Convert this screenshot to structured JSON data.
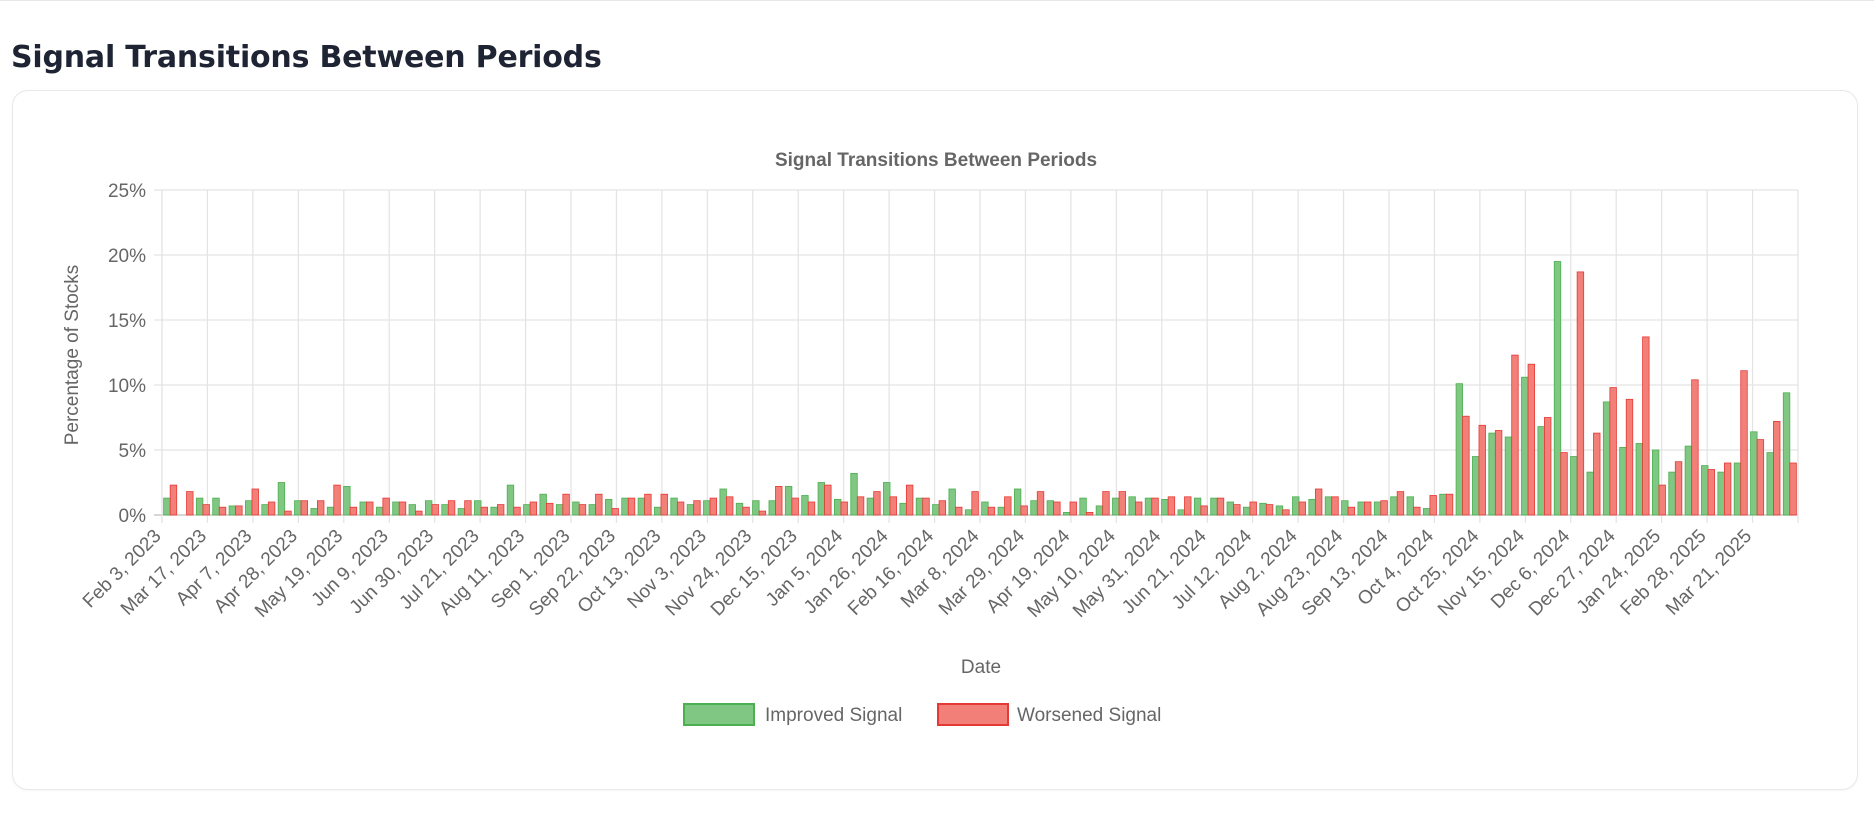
{
  "page": {
    "title": "Signal Transitions Between Periods"
  },
  "chart_data": {
    "type": "bar",
    "title": "Signal Transitions Between Periods",
    "xlabel": "Date",
    "ylabel": "Percentage of Stocks",
    "ylim": [
      0,
      25
    ],
    "y_ticks": [
      "0%",
      "5%",
      "10%",
      "15%",
      "20%",
      "25%"
    ],
    "grid": true,
    "legend_position": "bottom",
    "x_tick_labels": [
      "Feb 3, 2023",
      "Mar 17, 2023",
      "Apr 7, 2023",
      "Apr 28, 2023",
      "May 19, 2023",
      "Jun 9, 2023",
      "Jun 30, 2023",
      "Jul 21, 2023",
      "Aug 11, 2023",
      "Sep 1, 2023",
      "Sep 22, 2023",
      "Oct 13, 2023",
      "Nov 3, 2023",
      "Nov 24, 2023",
      "Dec 15, 2023",
      "Jan 5, 2024",
      "Jan 26, 2024",
      "Feb 16, 2024",
      "Mar 8, 2024",
      "Mar 29, 2024",
      "Apr 19, 2024",
      "May 10, 2024",
      "May 31, 2024",
      "Jun 21, 2024",
      "Jul 12, 2024",
      "Aug 2, 2024",
      "Aug 23, 2024",
      "Sep 13, 2024",
      "Oct 4, 2024",
      "Oct 25, 2024",
      "Nov 15, 2024",
      "Dec 6, 2024",
      "Dec 27, 2024",
      "Jan 24, 2025",
      "Feb 28, 2025",
      "Mar 21, 2025"
    ],
    "series": [
      {
        "name": "Improved Signal",
        "color": "#81c784",
        "border": "#4caf50",
        "values": [
          1.3,
          0.0,
          1.3,
          1.3,
          0.7,
          1.1,
          0.8,
          2.5,
          1.1,
          0.5,
          0.6,
          2.2,
          1.0,
          0.6,
          1.0,
          0.8,
          1.1,
          0.8,
          0.5,
          1.1,
          0.6,
          2.3,
          0.8,
          1.6,
          0.8,
          1.0,
          0.8,
          1.2,
          1.3,
          1.3,
          0.6,
          1.3,
          0.8,
          1.1,
          2.0,
          0.9,
          1.1,
          1.1,
          2.2,
          1.5,
          2.5,
          1.2,
          3.2,
          1.3,
          2.5,
          0.9,
          1.3,
          0.8,
          2.0,
          0.4,
          1.0,
          0.6,
          2.0,
          1.1,
          1.1,
          0.2,
          1.3,
          0.7,
          1.3,
          1.4,
          1.3,
          1.2,
          0.4,
          1.3,
          1.3,
          1.0,
          0.6,
          0.9,
          0.7,
          1.4,
          1.2,
          1.4,
          1.1,
          1.0,
          1.0,
          1.4,
          1.4,
          0.5,
          1.6,
          10.1,
          4.5,
          6.3,
          6.0,
          10.6,
          6.8,
          19.5,
          4.5,
          3.3,
          8.7,
          5.2,
          5.5,
          5.0,
          3.3,
          5.3,
          3.8,
          3.3,
          4.0,
          6.4,
          4.8,
          9.4
        ]
      },
      {
        "name": "Worsened Signal",
        "color": "#f28079",
        "border": "#e53935",
        "values": [
          2.3,
          1.8,
          0.8,
          0.6,
          0.7,
          2.0,
          1.0,
          0.3,
          1.1,
          1.1,
          2.3,
          0.6,
          1.0,
          1.3,
          1.0,
          0.3,
          0.8,
          1.1,
          1.1,
          0.6,
          0.8,
          0.6,
          1.0,
          0.9,
          1.6,
          0.8,
          1.6,
          0.5,
          1.3,
          1.6,
          1.6,
          1.0,
          1.1,
          1.3,
          1.4,
          0.6,
          0.3,
          2.2,
          1.3,
          1.0,
          2.3,
          1.0,
          1.4,
          1.8,
          1.4,
          2.3,
          1.3,
          1.1,
          0.6,
          1.8,
          0.6,
          1.4,
          0.7,
          1.8,
          1.0,
          1.0,
          0.2,
          1.8,
          1.8,
          1.0,
          1.3,
          1.4,
          1.4,
          0.7,
          1.3,
          0.8,
          1.0,
          0.8,
          0.4,
          1.0,
          2.0,
          1.4,
          0.6,
          1.0,
          1.1,
          1.8,
          0.6,
          1.5,
          1.6,
          7.6,
          6.9,
          6.5,
          12.3,
          11.6,
          7.5,
          4.8,
          18.7,
          6.3,
          9.8,
          8.9,
          13.7,
          2.3,
          4.1,
          10.4,
          3.5,
          4.0,
          11.1,
          5.8,
          7.2,
          4.0
        ]
      }
    ]
  }
}
